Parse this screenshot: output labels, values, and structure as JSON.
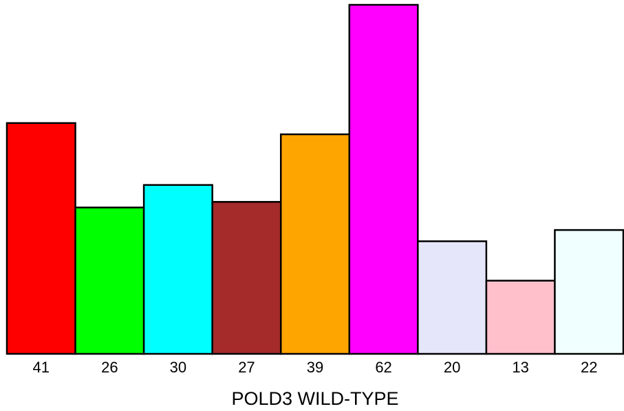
{
  "chart_data": {
    "type": "bar",
    "title": "",
    "xlabel": "POLD3 WILD-TYPE",
    "ylabel": "",
    "categories": [
      "41",
      "26",
      "30",
      "27",
      "39",
      "62",
      "20",
      "13",
      "22"
    ],
    "values": [
      41,
      26,
      30,
      27,
      39,
      62,
      20,
      13,
      22
    ],
    "colors": [
      "#FF0000",
      "#00FF00",
      "#00FFFF",
      "#A52A2A",
      "#FFA500",
      "#FF00FF",
      "#E6E6FA",
      "#FFC0CB",
      "#F0FFFF"
    ],
    "ylim": [
      0,
      62
    ],
    "grid": false,
    "legend": "none"
  }
}
